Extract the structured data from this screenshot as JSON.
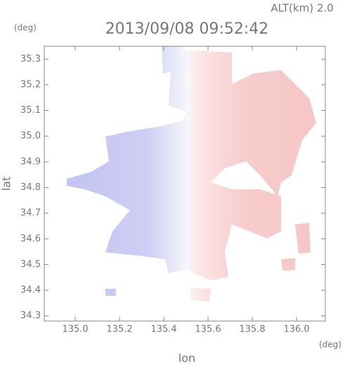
{
  "chart_data": {
    "type": "radar",
    "title": "2013/09/08 09:52:42",
    "annotation": "ALT(km) 2.0",
    "xlabel": "lon",
    "ylabel": "lat",
    "xunit": "(deg)",
    "yunit": "(deg)",
    "xlim": [
      134.86,
      136.13
    ],
    "ylim": [
      34.28,
      35.35
    ],
    "xticks": [
      {
        "value": 135.0,
        "label": "135.0"
      },
      135.2,
      135.4,
      135.6,
      135.8,
      {
        "value": 136.0,
        "label": "136.0"
      }
    ],
    "yticks": [
      34.3,
      34.4,
      34.5,
      34.6,
      34.7,
      34.8,
      34.9,
      {
        "value": 35.0,
        "label": "35.0"
      },
      35.1,
      35.2,
      35.3
    ]
  }
}
